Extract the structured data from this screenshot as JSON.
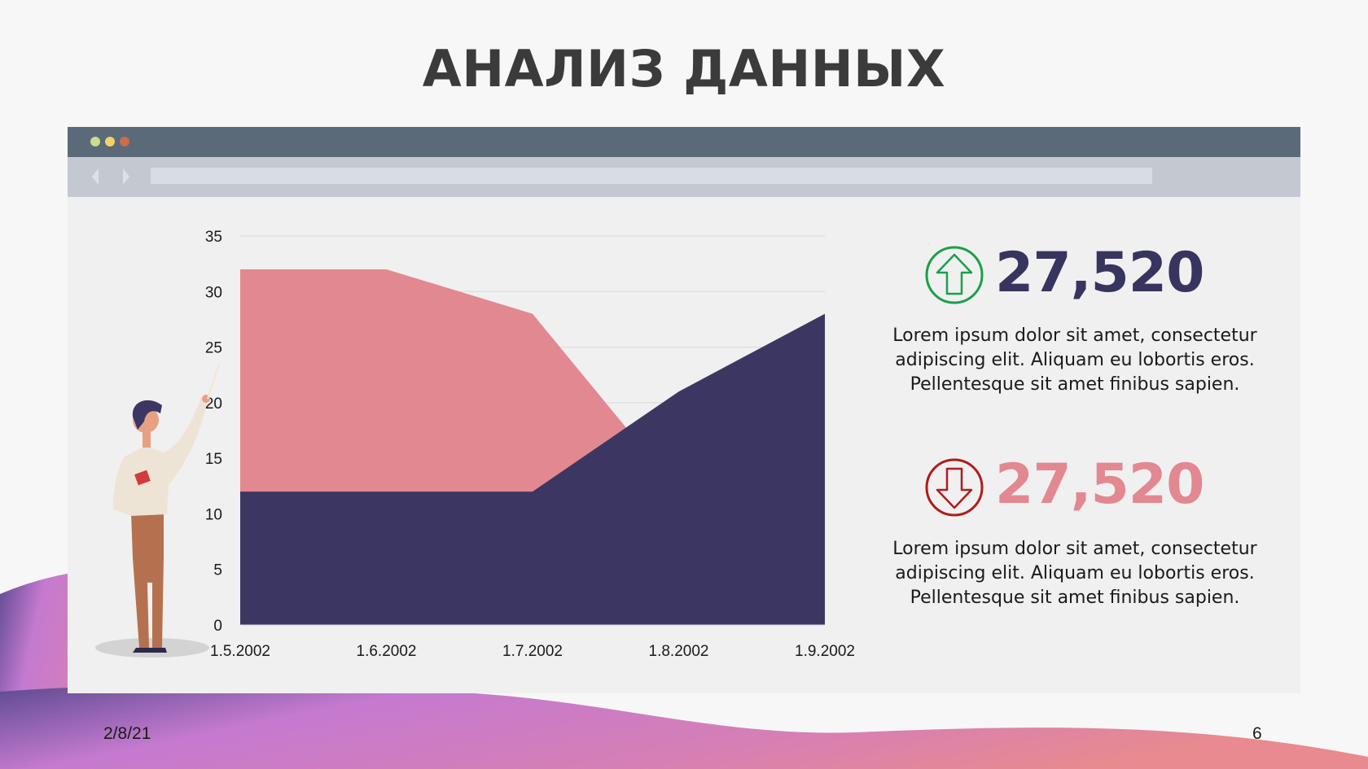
{
  "slide": {
    "title": "АНАЛИЗ ДАННЫХ",
    "date": "2/8/21",
    "page_number": "6"
  },
  "browser": {
    "dot_colors": [
      "#cddc8a",
      "#f3d26b",
      "#cf6a4b"
    ]
  },
  "chart_data": {
    "type": "area",
    "x": [
      "1.5.2002",
      "1.6.2002",
      "1.7.2002",
      "1.8.2002",
      "1.9.2002"
    ],
    "yticks": [
      "0",
      "5",
      "10",
      "15",
      "20",
      "25",
      "30",
      "35"
    ],
    "ylim": [
      0,
      35
    ],
    "grid": true,
    "series": [
      {
        "values": [
          32,
          32,
          28,
          12,
          19
        ],
        "color": "#e28891"
      },
      {
        "values": [
          12,
          12,
          12,
          21,
          28
        ],
        "color": "#3c3762"
      }
    ]
  },
  "kpis": [
    {
      "direction": "up",
      "icon": "arrow-up-icon",
      "value": "27,520",
      "value_color": "#37345f",
      "icon_color": "#1aa04a",
      "text": [
        "Lorem ipsum dolor sit amet, consectetur",
        "adipiscing elit. Aliquam eu lobortis eros.",
        "Pellentesque sit amet finibus sapien."
      ]
    },
    {
      "direction": "down",
      "icon": "arrow-down-icon",
      "value": "27,520",
      "value_color": "#e28891",
      "icon_color": "#b01c1c",
      "text": [
        "Lorem ipsum dolor sit amet, consectetur",
        "adipiscing elit. Aliquam eu lobortis eros.",
        "Pellentesque sit amet finibus sapien."
      ]
    }
  ]
}
